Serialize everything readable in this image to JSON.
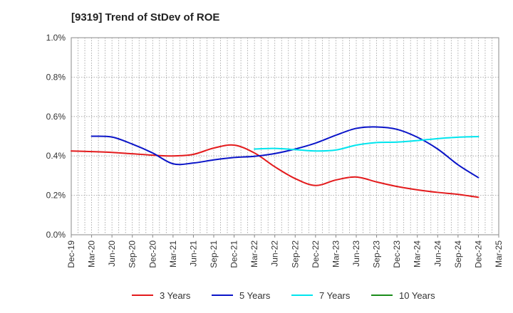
{
  "chart_data": {
    "type": "line",
    "title": "[9319]  Trend of StDev of ROE",
    "xlabel": "",
    "ylabel": "",
    "categories": [
      "Dec-19",
      "Mar-20",
      "Jun-20",
      "Sep-20",
      "Dec-20",
      "Mar-21",
      "Jun-21",
      "Sep-21",
      "Dec-21",
      "Mar-22",
      "Jun-22",
      "Sep-22",
      "Dec-22",
      "Mar-23",
      "Jun-23",
      "Sep-23",
      "Dec-23",
      "Mar-24",
      "Jun-24",
      "Sep-24",
      "Dec-24",
      "Mar-25"
    ],
    "ylim": [
      0,
      1.0
    ],
    "y_ticks": [
      "0.0%",
      "0.2%",
      "0.4%",
      "0.6%",
      "0.8%",
      "1.0%"
    ],
    "grid": true,
    "legend_position": "bottom",
    "series": [
      {
        "name": "3 Years",
        "color": "#e31a1c",
        "values": [
          0.425,
          0.422,
          0.418,
          0.411,
          0.404,
          0.4,
          0.408,
          0.44,
          0.455,
          0.415,
          0.345,
          0.285,
          0.25,
          0.278,
          0.293,
          0.268,
          0.245,
          0.228,
          0.215,
          0.205,
          0.19,
          null
        ]
      },
      {
        "name": "5 Years",
        "color": "#0a14c8",
        "values": [
          null,
          0.5,
          0.496,
          0.46,
          0.415,
          0.36,
          0.364,
          0.38,
          0.392,
          0.398,
          0.412,
          0.435,
          0.465,
          0.505,
          0.54,
          0.547,
          0.535,
          0.495,
          0.435,
          0.355,
          0.29,
          null
        ]
      },
      {
        "name": "7 Years",
        "color": "#00e5ee",
        "values": [
          null,
          null,
          null,
          null,
          null,
          null,
          null,
          null,
          null,
          0.435,
          0.438,
          0.432,
          0.425,
          0.43,
          0.455,
          0.468,
          0.47,
          0.478,
          0.488,
          0.495,
          0.498,
          null
        ]
      },
      {
        "name": "10 Years",
        "color": "#1a8c1a",
        "values": [
          null,
          null,
          null,
          null,
          null,
          null,
          null,
          null,
          null,
          null,
          null,
          null,
          null,
          null,
          null,
          null,
          null,
          null,
          null,
          null,
          null,
          null
        ]
      }
    ]
  }
}
